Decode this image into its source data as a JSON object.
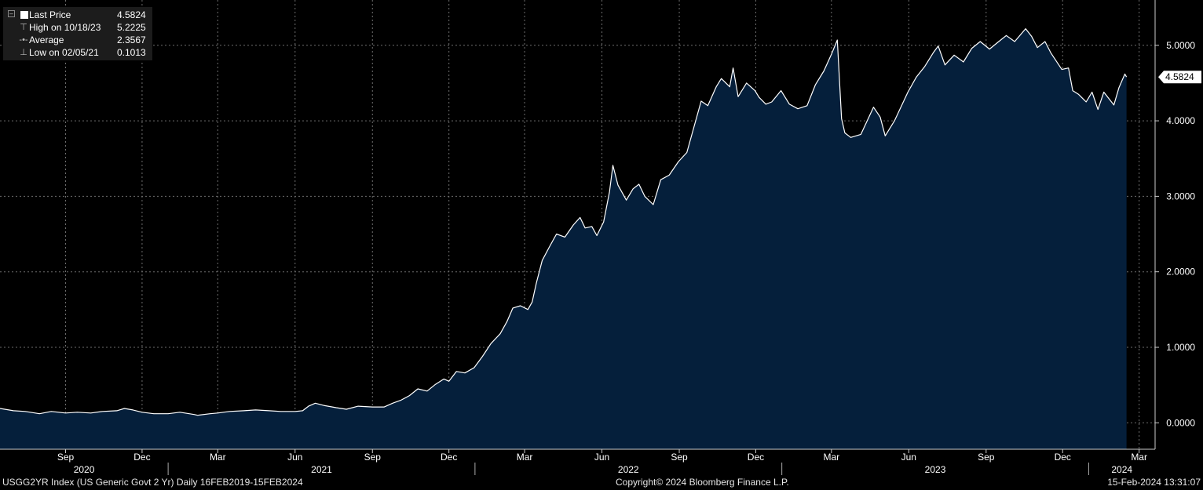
{
  "legend": {
    "last_price_label": "Last Price",
    "last_price_value": "4.5824",
    "high_label": "High on 10/18/23",
    "high_value": "5.2225",
    "average_label": "Average",
    "average_value": "2.3567",
    "low_label": "Low on 02/05/21",
    "low_value": "0.1013"
  },
  "footer": {
    "ticker": "USGG2YR Index (US Generic Govt 2 Yr)  Daily 16FEB2019-15FEB2024",
    "copyright": "Copyright© 2024 Bloomberg Finance L.P.",
    "timestamp": "15-Feb-2024 13:31:07"
  },
  "colors": {
    "background": "#000000",
    "area_fill": "#051f3b",
    "line": "#ffffff",
    "grid": "#6e6e6e"
  },
  "chart_data": {
    "type": "area",
    "title": "",
    "xlabel": "",
    "ylabel": "",
    "x_range": [
      "2020-06-15",
      "2024-03-20"
    ],
    "ylim": [
      -0.35,
      5.6
    ],
    "y_ticks": [
      0.0,
      1.0,
      2.0,
      3.0,
      4.0,
      5.0
    ],
    "y_tick_labels": [
      "0.0000",
      "1.0000",
      "2.0000",
      "3.0000",
      "4.0000",
      "5.0000"
    ],
    "grid": true,
    "month_ticks": [
      {
        "date": "2020-09-01",
        "label": "Sep"
      },
      {
        "date": "2020-12-01",
        "label": "Dec"
      },
      {
        "date": "2021-03-01",
        "label": "Mar"
      },
      {
        "date": "2021-06-01",
        "label": "Jun"
      },
      {
        "date": "2021-09-01",
        "label": "Sep"
      },
      {
        "date": "2021-12-01",
        "label": "Dec"
      },
      {
        "date": "2022-03-01",
        "label": "Mar"
      },
      {
        "date": "2022-06-01",
        "label": "Jun"
      },
      {
        "date": "2022-09-01",
        "label": "Sep"
      },
      {
        "date": "2022-12-01",
        "label": "Dec"
      },
      {
        "date": "2023-03-01",
        "label": "Mar"
      },
      {
        "date": "2023-06-01",
        "label": "Jun"
      },
      {
        "date": "2023-09-01",
        "label": "Sep"
      },
      {
        "date": "2023-12-01",
        "label": "Dec"
      },
      {
        "date": "2024-03-01",
        "label": "Mar"
      }
    ],
    "year_labels": [
      {
        "label": "2020",
        "start": "2020-06-15",
        "end": "2021-01-01"
      },
      {
        "label": "2021",
        "start": "2021-01-01",
        "end": "2022-01-01"
      },
      {
        "label": "2022",
        "start": "2022-01-01",
        "end": "2023-01-01"
      },
      {
        "label": "2023",
        "start": "2023-01-01",
        "end": "2024-01-01"
      },
      {
        "label": "2024",
        "start": "2024-01-01",
        "end": "2024-03-20"
      }
    ],
    "last_value_label": "4.5824",
    "series": [
      {
        "values": [
          [
            "2020-06-15",
            0.19
          ],
          [
            "2020-07-01",
            0.16
          ],
          [
            "2020-07-15",
            0.15
          ],
          [
            "2020-08-01",
            0.12
          ],
          [
            "2020-08-15",
            0.15
          ],
          [
            "2020-09-01",
            0.13
          ],
          [
            "2020-09-15",
            0.14
          ],
          [
            "2020-10-01",
            0.13
          ],
          [
            "2020-10-15",
            0.15
          ],
          [
            "2020-11-01",
            0.16
          ],
          [
            "2020-11-10",
            0.19
          ],
          [
            "2020-11-20",
            0.17
          ],
          [
            "2020-12-01",
            0.14
          ],
          [
            "2020-12-15",
            0.12
          ],
          [
            "2021-01-01",
            0.12
          ],
          [
            "2021-01-15",
            0.14
          ],
          [
            "2021-02-01",
            0.11
          ],
          [
            "2021-02-05",
            0.1
          ],
          [
            "2021-02-20",
            0.12
          ],
          [
            "2021-03-01",
            0.13
          ],
          [
            "2021-03-15",
            0.15
          ],
          [
            "2021-04-01",
            0.16
          ],
          [
            "2021-04-15",
            0.17
          ],
          [
            "2021-05-01",
            0.16
          ],
          [
            "2021-05-15",
            0.15
          ],
          [
            "2021-06-01",
            0.15
          ],
          [
            "2021-06-10",
            0.16
          ],
          [
            "2021-06-17",
            0.22
          ],
          [
            "2021-06-25",
            0.26
          ],
          [
            "2021-07-05",
            0.23
          ],
          [
            "2021-07-20",
            0.2
          ],
          [
            "2021-08-01",
            0.18
          ],
          [
            "2021-08-15",
            0.22
          ],
          [
            "2021-09-01",
            0.21
          ],
          [
            "2021-09-15",
            0.21
          ],
          [
            "2021-09-25",
            0.26
          ],
          [
            "2021-10-05",
            0.3
          ],
          [
            "2021-10-15",
            0.36
          ],
          [
            "2021-10-25",
            0.45
          ],
          [
            "2021-11-05",
            0.42
          ],
          [
            "2021-11-15",
            0.51
          ],
          [
            "2021-11-25",
            0.58
          ],
          [
            "2021-12-01",
            0.55
          ],
          [
            "2021-12-10",
            0.68
          ],
          [
            "2021-12-20",
            0.66
          ],
          [
            "2021-12-31",
            0.73
          ],
          [
            "2022-01-10",
            0.88
          ],
          [
            "2022-01-20",
            1.05
          ],
          [
            "2022-01-31",
            1.18
          ],
          [
            "2022-02-08",
            1.34
          ],
          [
            "2022-02-15",
            1.52
          ],
          [
            "2022-02-24",
            1.55
          ],
          [
            "2022-03-05",
            1.5
          ],
          [
            "2022-03-10",
            1.6
          ],
          [
            "2022-03-15",
            1.85
          ],
          [
            "2022-03-22",
            2.15
          ],
          [
            "2022-03-31",
            2.34
          ],
          [
            "2022-04-08",
            2.5
          ],
          [
            "2022-04-18",
            2.46
          ],
          [
            "2022-04-28",
            2.62
          ],
          [
            "2022-05-06",
            2.72
          ],
          [
            "2022-05-12",
            2.58
          ],
          [
            "2022-05-20",
            2.6
          ],
          [
            "2022-05-26",
            2.48
          ],
          [
            "2022-06-03",
            2.66
          ],
          [
            "2022-06-10",
            3.06
          ],
          [
            "2022-06-14",
            3.41
          ],
          [
            "2022-06-20",
            3.15
          ],
          [
            "2022-06-30",
            2.95
          ],
          [
            "2022-07-08",
            3.1
          ],
          [
            "2022-07-15",
            3.16
          ],
          [
            "2022-07-22",
            3.0
          ],
          [
            "2022-08-01",
            2.89
          ],
          [
            "2022-08-10",
            3.22
          ],
          [
            "2022-08-20",
            3.28
          ],
          [
            "2022-08-31",
            3.46
          ],
          [
            "2022-09-10",
            3.58
          ],
          [
            "2022-09-20",
            3.98
          ],
          [
            "2022-09-27",
            4.26
          ],
          [
            "2022-10-05",
            4.2
          ],
          [
            "2022-10-15",
            4.45
          ],
          [
            "2022-10-21",
            4.56
          ],
          [
            "2022-10-31",
            4.45
          ],
          [
            "2022-11-04",
            4.7
          ],
          [
            "2022-11-10",
            4.32
          ],
          [
            "2022-11-20",
            4.5
          ],
          [
            "2022-11-30",
            4.4
          ],
          [
            "2022-12-05",
            4.31
          ],
          [
            "2022-12-13",
            4.22
          ],
          [
            "2022-12-20",
            4.25
          ],
          [
            "2022-12-31",
            4.4
          ],
          [
            "2023-01-10",
            4.22
          ],
          [
            "2023-01-20",
            4.16
          ],
          [
            "2023-01-31",
            4.2
          ],
          [
            "2023-02-10",
            4.48
          ],
          [
            "2023-02-20",
            4.66
          ],
          [
            "2023-03-01",
            4.88
          ],
          [
            "2023-03-08",
            5.07
          ],
          [
            "2023-03-13",
            4.03
          ],
          [
            "2023-03-17",
            3.84
          ],
          [
            "2023-03-24",
            3.78
          ],
          [
            "2023-04-05",
            3.82
          ],
          [
            "2023-04-20",
            4.18
          ],
          [
            "2023-04-28",
            4.05
          ],
          [
            "2023-05-04",
            3.8
          ],
          [
            "2023-05-15",
            4.0
          ],
          [
            "2023-05-31",
            4.38
          ],
          [
            "2023-06-10",
            4.58
          ],
          [
            "2023-06-20",
            4.72
          ],
          [
            "2023-06-30",
            4.9
          ],
          [
            "2023-07-06",
            4.99
          ],
          [
            "2023-07-14",
            4.74
          ],
          [
            "2023-07-25",
            4.87
          ],
          [
            "2023-08-05",
            4.78
          ],
          [
            "2023-08-15",
            4.96
          ],
          [
            "2023-08-25",
            5.05
          ],
          [
            "2023-09-05",
            4.95
          ],
          [
            "2023-09-15",
            5.04
          ],
          [
            "2023-09-25",
            5.13
          ],
          [
            "2023-10-05",
            5.05
          ],
          [
            "2023-10-18",
            5.22
          ],
          [
            "2023-10-25",
            5.12
          ],
          [
            "2023-11-01",
            4.97
          ],
          [
            "2023-11-10",
            5.05
          ],
          [
            "2023-11-17",
            4.9
          ],
          [
            "2023-11-30",
            4.68
          ],
          [
            "2023-12-08",
            4.7
          ],
          [
            "2023-12-13",
            4.4
          ],
          [
            "2023-12-20",
            4.35
          ],
          [
            "2023-12-29",
            4.25
          ],
          [
            "2024-01-05",
            4.38
          ],
          [
            "2024-01-12",
            4.15
          ],
          [
            "2024-01-19",
            4.38
          ],
          [
            "2024-01-31",
            4.21
          ],
          [
            "2024-02-06",
            4.44
          ],
          [
            "2024-02-13",
            4.62
          ],
          [
            "2024-02-15",
            4.58
          ]
        ]
      }
    ]
  }
}
